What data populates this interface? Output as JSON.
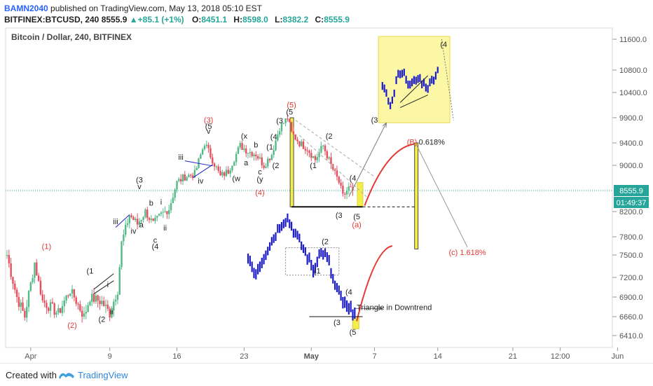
{
  "header": {
    "username": "BAMN2040",
    "published_text": "published on TradingView.com, May 13, 2018 05:10 EST",
    "symbol": "BITFINEX:BTCUSD, 240",
    "last": "8555.9",
    "change": "+85.1 (+1%)",
    "open_label": "O:",
    "open": "8451.1",
    "high_label": "H:",
    "high": "8598.0",
    "low_label": "L:",
    "low": "8382.2",
    "close_label": "C:",
    "close": "8555.9"
  },
  "chart_title": "Bitcoin / Dollar, 240, BITFINEX",
  "price_badge": "8555.9",
  "time_badge": "01:49:37",
  "footer": {
    "created_with": "Created with",
    "brand": "TradingView"
  },
  "colors": {
    "bull": "#53b987",
    "bear": "#eb4d5c",
    "blue": "#2222cc",
    "yellow": "#f5f16a",
    "red": "#e53935",
    "axis": "#c8c8c8"
  },
  "chart_data": {
    "type": "candlestick",
    "title": "Bitcoin / Dollar, 240, BITFINEX",
    "y_axis": {
      "ticks": [
        6410.0,
        6660.0,
        6900.0,
        7200.0,
        7500.0,
        7800.0,
        8200.0,
        8555.9,
        9000.0,
        9400.0,
        9900.0,
        10400.0,
        10800.0,
        11600.0
      ]
    },
    "x_axis": {
      "ticks": [
        "Apr",
        "9",
        "16",
        "23",
        "May",
        "7",
        "14",
        "21",
        "12:00",
        "Jun"
      ]
    },
    "price_key_points": [
      {
        "t": 0,
        "v": 7500
      },
      {
        "t": 5,
        "v": 6900
      },
      {
        "t": 9,
        "v": 6660
      },
      {
        "t": 14,
        "v": 7400
      },
      {
        "t": 18,
        "v": 6850
      },
      {
        "t": 26,
        "v": 6700
      },
      {
        "t": 32,
        "v": 7000
      },
      {
        "t": 39,
        "v": 6660
      },
      {
        "t": 42,
        "v": 6900
      },
      {
        "t": 48,
        "v": 6840
      },
      {
        "t": 52,
        "v": 6700
      },
      {
        "t": 56,
        "v": 7000
      },
      {
        "t": 58,
        "v": 7700
      },
      {
        "t": 62,
        "v": 8150
      },
      {
        "t": 66,
        "v": 8000
      },
      {
        "t": 70,
        "v": 8200
      },
      {
        "t": 74,
        "v": 8000
      },
      {
        "t": 78,
        "v": 8150
      },
      {
        "t": 82,
        "v": 8250
      },
      {
        "t": 86,
        "v": 8700
      },
      {
        "t": 90,
        "v": 8800
      },
      {
        "t": 95,
        "v": 8850
      },
      {
        "t": 100,
        "v": 9400
      },
      {
        "t": 104,
        "v": 9100
      },
      {
        "t": 108,
        "v": 8800
      },
      {
        "t": 112,
        "v": 8900
      },
      {
        "t": 118,
        "v": 9350
      },
      {
        "t": 122,
        "v": 9250
      },
      {
        "t": 126,
        "v": 9200
      },
      {
        "t": 130,
        "v": 9000
      },
      {
        "t": 134,
        "v": 9200
      },
      {
        "t": 138,
        "v": 9700
      },
      {
        "t": 142,
        "v": 9900
      },
      {
        "t": 144,
        "v": 9600
      },
      {
        "t": 148,
        "v": 9400
      },
      {
        "t": 152,
        "v": 9300
      },
      {
        "t": 156,
        "v": 9100
      },
      {
        "t": 160,
        "v": 9350
      },
      {
        "t": 164,
        "v": 9000
      },
      {
        "t": 168,
        "v": 8700
      },
      {
        "t": 170,
        "v": 8450
      },
      {
        "t": 173,
        "v": 8600
      },
      {
        "t": 175,
        "v": 8556
      }
    ],
    "annotations": [
      {
        "text": "(1)",
        "t": 20,
        "v": 7600,
        "color": "red"
      },
      {
        "text": "(2)",
        "t": 33,
        "v": 6510,
        "color": "red"
      },
      {
        "text": "(1",
        "t": 42,
        "v": 7250,
        "color": "black"
      },
      {
        "text": "(2",
        "t": 48,
        "v": 6590,
        "color": "black"
      },
      {
        "text": "i",
        "t": 51,
        "v": 7050,
        "color": "black"
      },
      {
        "text": "ii",
        "t": 53,
        "v": 6690,
        "color": "black"
      },
      {
        "text": "iii",
        "t": 55,
        "v": 8000,
        "color": "black"
      },
      {
        "text": "iv",
        "t": 64,
        "v": 7850,
        "color": "black"
      },
      {
        "text": "(3",
        "t": 67,
        "v": 8700,
        "color": "black"
      },
      {
        "text": "v",
        "t": 67,
        "v": 8580,
        "color": "black"
      },
      {
        "text": "b",
        "t": 73,
        "v": 8300,
        "color": "black"
      },
      {
        "text": "i",
        "t": 78,
        "v": 8320,
        "color": "black"
      },
      {
        "text": "a",
        "t": 68,
        "v": 7950,
        "color": "black"
      },
      {
        "text": "ii",
        "t": 80,
        "v": 7900,
        "color": "black"
      },
      {
        "text": "c",
        "t": 75,
        "v": 7700,
        "color": "black"
      },
      {
        "text": "(4",
        "t": 75,
        "v": 7600,
        "color": "black"
      },
      {
        "text": "iii",
        "t": 88,
        "v": 9100,
        "color": "black"
      },
      {
        "text": "iv",
        "t": 98,
        "v": 8680,
        "color": "black"
      },
      {
        "text": "(3)",
        "t": 102,
        "v": 9800,
        "color": "red"
      },
      {
        "text": "(5",
        "t": 102,
        "v": 9680,
        "color": "black"
      },
      {
        "text": "v",
        "t": 102,
        "v": 9580,
        "color": "black"
      },
      {
        "text": "(x",
        "t": 120,
        "v": 9480,
        "color": "black"
      },
      {
        "text": "b",
        "t": 126,
        "v": 9320,
        "color": "black"
      },
      {
        "text": "a",
        "t": 121,
        "v": 9000,
        "color": "black"
      },
      {
        "text": "(w",
        "t": 116,
        "v": 8720,
        "color": "black"
      },
      {
        "text": "c",
        "t": 128,
        "v": 8840,
        "color": "black"
      },
      {
        "text": "(y",
        "t": 128,
        "v": 8710,
        "color": "black"
      },
      {
        "text": "(4)",
        "t": 128,
        "v": 8480,
        "color": "red"
      },
      {
        "text": "(1",
        "t": 133,
        "v": 9280,
        "color": "black"
      },
      {
        "text": "(2",
        "t": 136,
        "v": 8950,
        "color": "black"
      },
      {
        "text": "(3",
        "t": 138,
        "v": 9790,
        "color": "black"
      },
      {
        "text": "(4",
        "t": 135,
        "v": 9470,
        "color": "black"
      },
      {
        "text": "(5)",
        "t": 144,
        "v": 10100,
        "color": "red"
      },
      {
        "text": "(5",
        "t": 143,
        "v": 9960,
        "color": "black"
      },
      {
        "text": "(2",
        "t": 163,
        "v": 9480,
        "color": "black"
      },
      {
        "text": "(1",
        "t": 155,
        "v": 8950,
        "color": "black"
      },
      {
        "text": "(4",
        "t": 175,
        "v": 8730,
        "color": "black"
      },
      {
        "text": "(3",
        "t": 168,
        "v": 8100,
        "color": "black"
      },
      {
        "text": "(5",
        "t": 177,
        "v": 8080,
        "color": "black"
      },
      {
        "text": "(a)",
        "t": 177,
        "v": 7950,
        "color": "red"
      },
      {
        "text": "(B)",
        "t": 205,
        "v": 9370,
        "color": "red"
      },
      {
        "text": "0.618%",
        "t": 215,
        "v": 9370,
        "color": "black"
      },
      {
        "text": "(c)  1.618%",
        "t": 233,
        "v": 7500,
        "color": "red"
      },
      {
        "text": "(3",
        "t": 186,
        "v": 9800,
        "color": "black"
      },
      {
        "text": "(4",
        "t": 221,
        "v": 11400,
        "color": "black"
      },
      {
        "text": "(2",
        "t": 161,
        "v": 7680,
        "color": "black"
      },
      {
        "text": "(1",
        "t": 157,
        "v": 7250,
        "color": "black"
      },
      {
        "text": "(4",
        "t": 173,
        "v": 6940,
        "color": "black"
      },
      {
        "text": "(3",
        "t": 167,
        "v": 6550,
        "color": "black"
      },
      {
        "text": "(5",
        "t": 175,
        "v": 6420,
        "color": "black"
      },
      {
        "text": "Triangle in Downtrend",
        "t": 196,
        "v": 6740,
        "color": "black"
      }
    ]
  }
}
